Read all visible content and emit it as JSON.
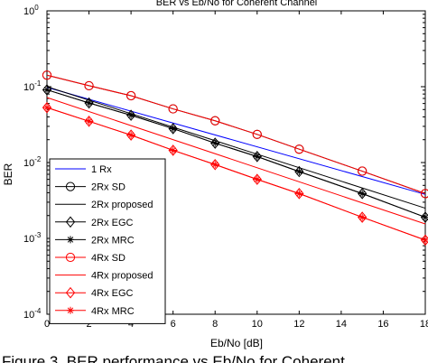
{
  "chart_data": {
    "type": "line",
    "title": "BER vs Eb/No for Coherent Channel",
    "xlabel": "Eb/No [dB]",
    "ylabel": "BER",
    "xlim": [
      0,
      18
    ],
    "ylim": [
      0.0001,
      1
    ],
    "yscale": "log",
    "xticks": [
      0,
      2,
      4,
      6,
      8,
      10,
      12,
      14,
      16,
      18
    ],
    "yticks": [
      {
        "base": "10",
        "exp": "-4",
        "value": 0.0001
      },
      {
        "base": "10",
        "exp": "-3",
        "value": 0.001
      },
      {
        "base": "10",
        "exp": "-2",
        "value": 0.01
      },
      {
        "base": "10",
        "exp": "-1",
        "value": 0.1
      },
      {
        "base": "10",
        "exp": "0",
        "value": 1
      }
    ],
    "grid": false,
    "legend_position": "bottom-left",
    "series": [
      {
        "name": "1 Rx",
        "color": "#0000ff",
        "marker": "none",
        "x": [
          0,
          18
        ],
        "y": [
          0.098,
          0.0038
        ]
      },
      {
        "name": "2Rx SD",
        "color": "#000000",
        "marker": "circle",
        "x": [
          0,
          2,
          4,
          6,
          8,
          10,
          12,
          15,
          18
        ],
        "y": [
          0.142,
          0.103,
          0.076,
          0.051,
          0.0355,
          0.0235,
          0.015,
          0.0077,
          0.0039
        ]
      },
      {
        "name": "2Rx proposed",
        "color": "#000000",
        "marker": "none",
        "x": [
          0,
          18
        ],
        "y": [
          0.1,
          0.0025
        ]
      },
      {
        "name": "2Rx EGC",
        "color": "#000000",
        "marker": "diamond",
        "x": [
          0,
          2,
          4,
          6,
          8,
          10,
          12,
          15,
          18
        ],
        "y": [
          0.091,
          0.061,
          0.042,
          0.028,
          0.018,
          0.012,
          0.0076,
          0.0039,
          0.0019
        ]
      },
      {
        "name": "2Rx MRC",
        "color": "#000000",
        "marker": "star",
        "x": [
          0,
          2,
          4,
          6,
          8,
          10,
          12,
          15,
          18
        ],
        "y": [
          0.091,
          0.061,
          0.042,
          0.028,
          0.018,
          0.012,
          0.0076,
          0.0039,
          0.0019
        ]
      },
      {
        "name": "4Rx SD",
        "color": "#ff0000",
        "marker": "circle",
        "x": [
          0,
          2,
          4,
          6,
          8,
          10,
          12,
          15,
          18
        ],
        "y": [
          0.142,
          0.103,
          0.076,
          0.051,
          0.0355,
          0.0235,
          0.015,
          0.0077,
          0.0039
        ]
      },
      {
        "name": "4Rx proposed",
        "color": "#ff0000",
        "marker": "none",
        "x": [
          0,
          18
        ],
        "y": [
          0.072,
          0.00155
        ]
      },
      {
        "name": "4Rx EGC",
        "color": "#ff0000",
        "marker": "diamond",
        "x": [
          0,
          2,
          4,
          6,
          8,
          10,
          12,
          15,
          18
        ],
        "y": [
          0.053,
          0.035,
          0.023,
          0.0145,
          0.0094,
          0.006,
          0.0039,
          0.0019,
          0.00095
        ]
      },
      {
        "name": "4Rx MRC",
        "color": "#ff0000",
        "marker": "star",
        "x": [
          0,
          2,
          4,
          6,
          8,
          10,
          12,
          15,
          18
        ],
        "y": [
          0.053,
          0.035,
          0.023,
          0.0145,
          0.0094,
          0.006,
          0.0039,
          0.0019,
          0.00095
        ]
      }
    ]
  },
  "caption": "Figure 3. BER performance vs Eb/No for Coherent"
}
